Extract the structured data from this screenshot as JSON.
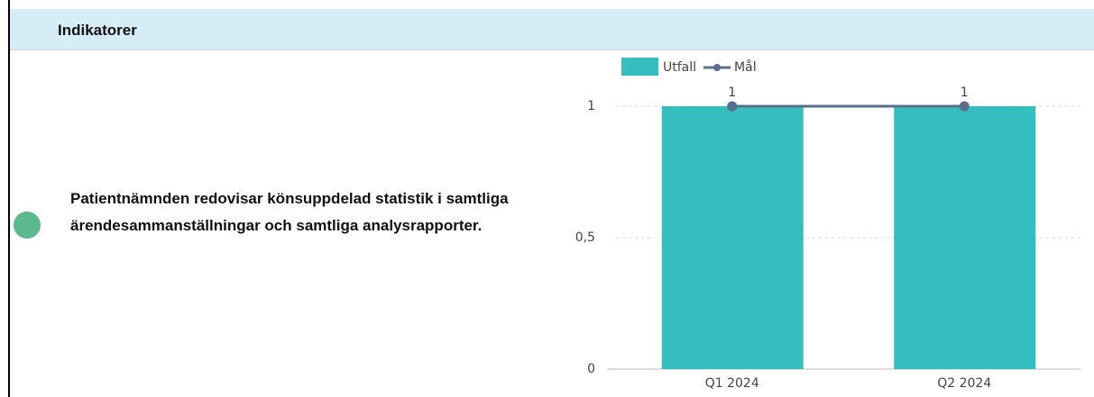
{
  "header": {
    "title": "Indikatorer"
  },
  "indicator": {
    "text": "Patientnämnden redovisar könsuppdelad statistik i samtliga ärendesammanställningar och samtliga analysrapporter."
  },
  "chart_data": {
    "type": "bar",
    "categories": [
      "Q1 2024",
      "Q2 2024"
    ],
    "series": [
      {
        "name": "Utfall",
        "type": "bar",
        "color": "#36bdbd",
        "values": [
          1,
          1
        ]
      },
      {
        "name": "Mål",
        "type": "line",
        "color": "#5a6e8a",
        "values": [
          1,
          1
        ]
      }
    ],
    "ylim": [
      0,
      1
    ],
    "yticks": [
      0,
      {
        "value": 0.5,
        "label": "0,5"
      },
      1
    ],
    "grid": true,
    "legend": "top"
  }
}
